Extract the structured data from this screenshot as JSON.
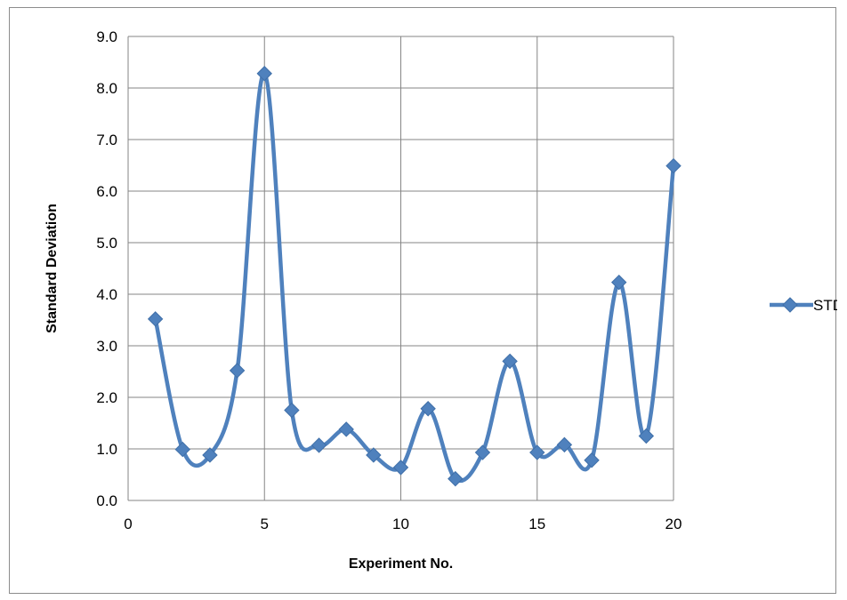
{
  "chart_data": {
    "type": "line",
    "title": "",
    "xlabel": "Experiment No.",
    "ylabel": "Standard Deviation",
    "xlim": [
      0,
      20
    ],
    "ylim": [
      0,
      9
    ],
    "x_ticks": [
      0,
      5,
      10,
      15,
      20
    ],
    "y_ticks": [
      0.0,
      1.0,
      2.0,
      3.0,
      4.0,
      5.0,
      6.0,
      7.0,
      8.0,
      9.0
    ],
    "y_tick_labels": [
      "0.0",
      "1.0",
      "2.0",
      "3.0",
      "4.0",
      "5.0",
      "6.0",
      "7.0",
      "8.0",
      "9.0"
    ],
    "x_tick_labels": [
      "0",
      "5",
      "10",
      "15",
      "20"
    ],
    "grid": true,
    "smooth": true,
    "marker": "diamond",
    "legend_position": "right",
    "series": [
      {
        "name": "STDEV",
        "color": "#4f81bd",
        "x": [
          1,
          2,
          3,
          4,
          5,
          6,
          7,
          8,
          9,
          10,
          11,
          12,
          13,
          14,
          15,
          16,
          17,
          18,
          19,
          20
        ],
        "y": [
          3.52,
          0.99,
          0.88,
          2.52,
          8.28,
          1.75,
          1.07,
          1.38,
          0.88,
          0.64,
          1.78,
          0.42,
          0.93,
          2.7,
          0.93,
          1.08,
          0.78,
          4.23,
          1.25,
          6.49
        ]
      }
    ]
  }
}
